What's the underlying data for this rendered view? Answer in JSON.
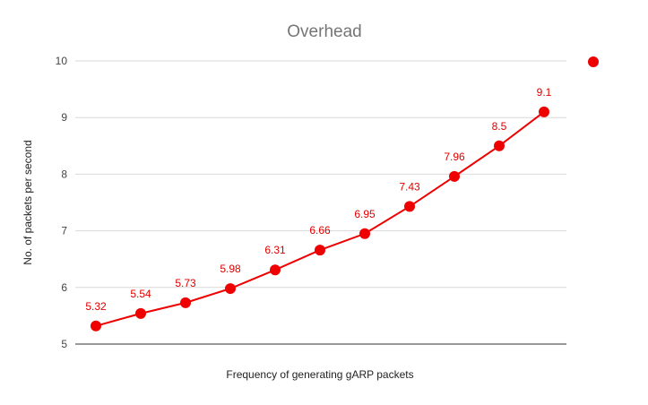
{
  "chart_data": {
    "type": "line",
    "title": "Overhead",
    "xlabel": "Frequency of generating gARP packets",
    "ylabel": "No. of packets per second",
    "ylim": [
      5,
      10
    ],
    "yticks": [
      5,
      6,
      7,
      8,
      9,
      10
    ],
    "grid": true,
    "legend": "right",
    "series": [
      {
        "values": [
          5.32,
          5.54,
          5.73,
          5.98,
          6.31,
          6.66,
          6.95,
          7.43,
          7.96,
          8.5,
          9.1
        ],
        "labels": [
          "5.32",
          "5.54",
          "5.73",
          "5.98",
          "6.31",
          "6.66",
          "6.95",
          "7.43",
          "7.96",
          "8.5",
          "9.1"
        ],
        "color": "#ee0000"
      }
    ]
  }
}
